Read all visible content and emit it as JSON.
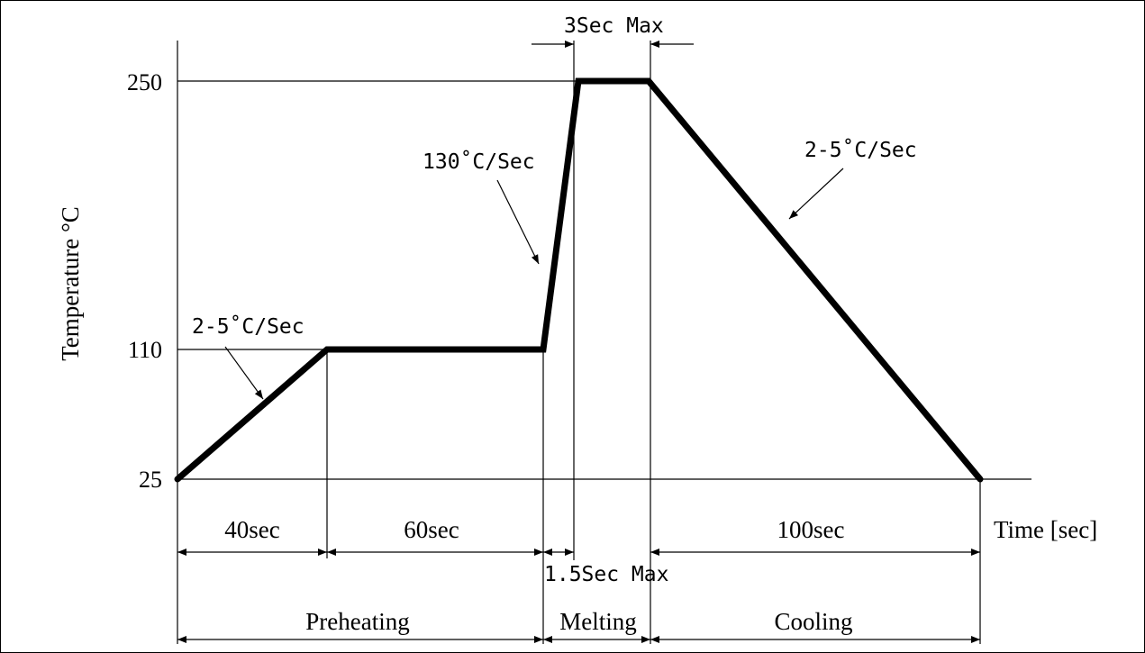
{
  "axis": {
    "ylabel": "Temperature °C",
    "xlabel": "Time [sec]",
    "ytick_labels": [
      "25",
      "110",
      "250"
    ]
  },
  "profile": {
    "temperatures": [
      25,
      110,
      110,
      250,
      250,
      25
    ]
  },
  "annotations": {
    "preheat_ramp_rate": "2-5˚C/Sec",
    "melt_ramp_rate": "130˚C/Sec",
    "cool_ramp_rate": "2-5˚C/Sec",
    "peak_hold": "3Sec Max",
    "melt_ramp_time": "1.5Sec Max"
  },
  "durations": {
    "ramp": "40sec",
    "soak": "60sec",
    "cooling": "100sec"
  },
  "phases": {
    "preheating": "Preheating",
    "melting": "Melting",
    "cooling": "Cooling"
  }
}
